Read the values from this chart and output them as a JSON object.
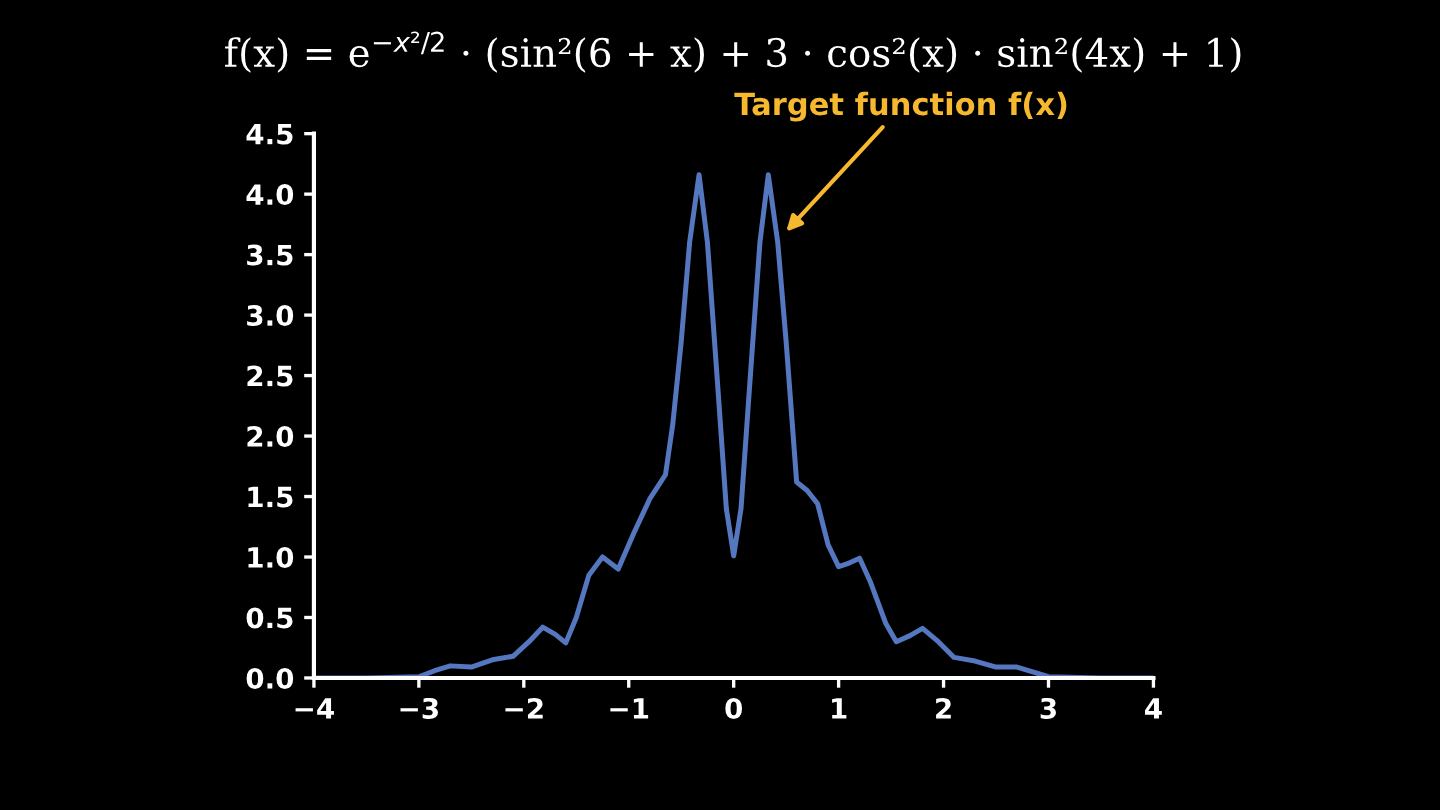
{
  "chart_data": {
    "type": "line",
    "title": "f(x) = e$^{−x²/2}$ · (sin²(6 + x) + 3 · cos²(x) · sin²(4x) + 1)",
    "x": [
      -4,
      -3.5,
      -3,
      -2.85,
      -2.7,
      -2.5,
      -2.3,
      -2.1,
      -1.95,
      -1.82,
      -1.7,
      -1.6,
      -1.5,
      -1.38,
      -1.25,
      -1.1,
      -0.95,
      -0.8,
      -0.65,
      -0.58,
      -0.5,
      -0.42,
      -0.33,
      -0.25,
      -0.15,
      -0.07,
      0,
      0.07,
      0.15,
      0.25,
      0.33,
      0.42,
      0.5,
      0.6,
      0.7,
      0.8,
      0.9,
      1.0,
      1.1,
      1.2,
      1.3,
      1.45,
      1.55,
      1.68,
      1.8,
      1.95,
      2.1,
      2.3,
      2.5,
      2.7,
      2.85,
      3,
      3.5,
      4
    ],
    "series": [
      {
        "color": "#5577c0",
        "values": [
          0,
          0,
          0.01,
          0.06,
          0.1,
          0.09,
          0.15,
          0.18,
          0.3,
          0.42,
          0.36,
          0.29,
          0.5,
          0.85,
          1.0,
          0.9,
          1.2,
          1.48,
          1.68,
          2.1,
          2.78,
          3.6,
          4.16,
          3.6,
          2.39,
          1.4,
          1.01,
          1.4,
          2.39,
          3.6,
          4.16,
          3.6,
          2.78,
          1.62,
          1.55,
          1.44,
          1.1,
          0.92,
          0.95,
          0.99,
          0.8,
          0.45,
          0.3,
          0.35,
          0.41,
          0.3,
          0.17,
          0.14,
          0.09,
          0.09,
          0.05,
          0.01,
          0,
          0
        ]
      }
    ],
    "xlim": [
      -4,
      4
    ],
    "ylim": [
      0,
      4.5
    ],
    "xticks": [
      {
        "value": -4,
        "label": "−4"
      },
      {
        "value": -3,
        "label": "−3"
      },
      {
        "value": -2,
        "label": "−2"
      },
      {
        "value": -1,
        "label": "−1"
      },
      0,
      1,
      2,
      3,
      4
    ],
    "yticks": [
      {
        "value": 0,
        "label": "0.0"
      },
      0.5,
      {
        "value": 1,
        "label": "1.0"
      },
      1.5,
      {
        "value": 2,
        "label": "2.0"
      },
      2.5,
      {
        "value": 3,
        "label": "3.0"
      },
      3.5,
      {
        "value": 4,
        "label": "4.0"
      },
      4.5
    ],
    "annotations": [
      {
        "text": "Target function f(x)",
        "x": 0.5,
        "y": 3.69
      }
    ],
    "grid": false,
    "legend": false
  }
}
